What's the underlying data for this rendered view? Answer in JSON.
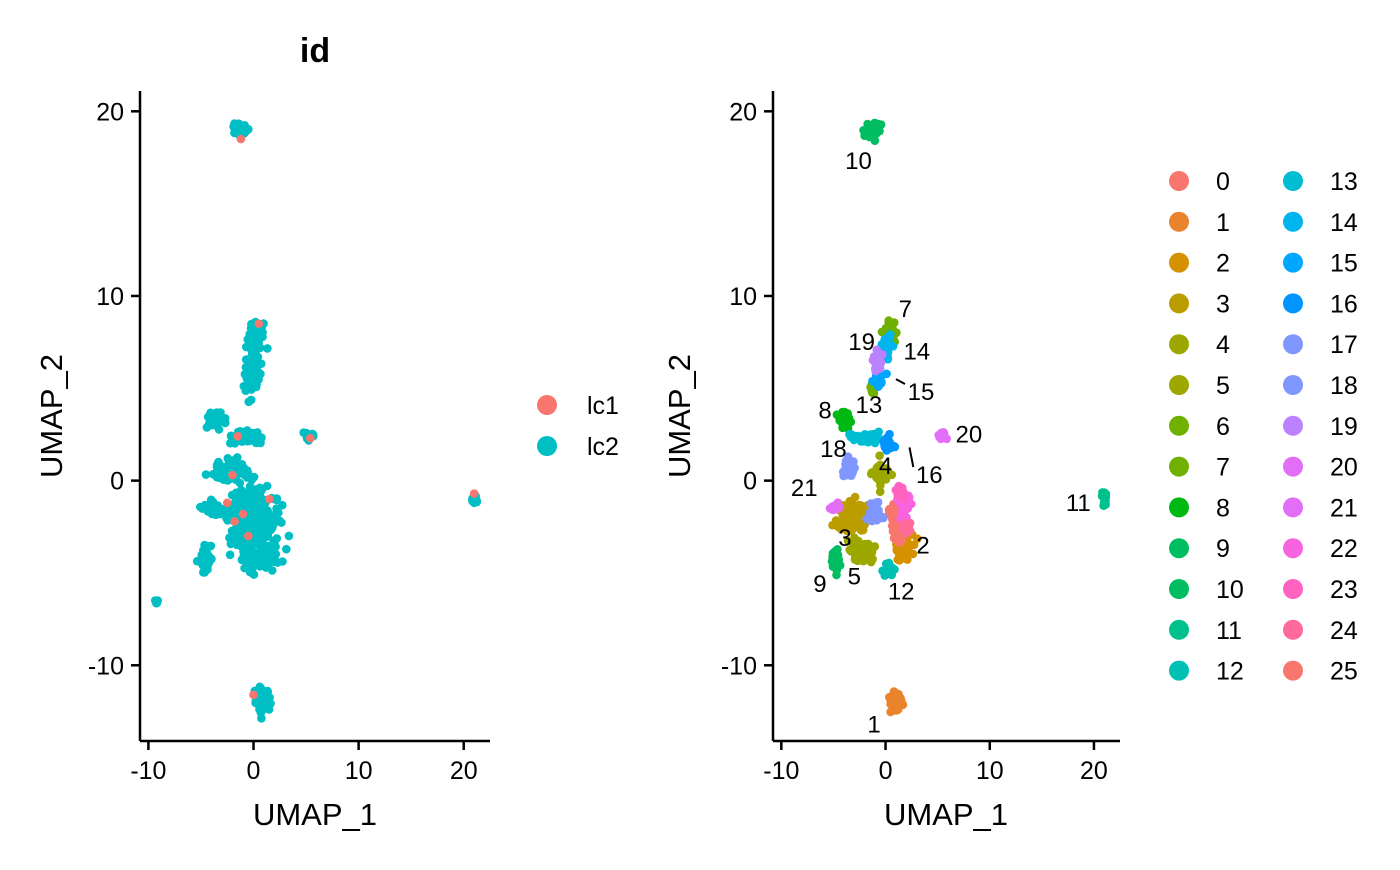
{
  "chart_data": [
    {
      "type": "scatter",
      "title": "id",
      "xlabel": "UMAP_1",
      "ylabel": "UMAP_2",
      "xlim": [
        -10.8,
        22.5
      ],
      "ylim": [
        -14.1,
        21.1
      ],
      "x_ticks": [
        -10,
        0,
        10,
        20
      ],
      "y_ticks": [
        -10,
        0,
        10,
        20
      ],
      "tick_labels_x": [
        "-10",
        "0",
        "10",
        "20"
      ],
      "tick_labels_y": [
        "-10",
        "0",
        "10",
        "20"
      ],
      "grid": false,
      "legend_position": "right",
      "series": [
        {
          "name": "lc1",
          "color": "#F8766D",
          "points": [
            [
              -1.5,
              2.4
            ],
            [
              -2.0,
              0.3
            ],
            [
              -2.5,
              -1.2
            ],
            [
              -1.0,
              -1.8
            ],
            [
              0.5,
              8.5
            ],
            [
              -1.2,
              18.5
            ],
            [
              0.0,
              -11.6
            ],
            [
              -1.8,
              -2.2
            ],
            [
              1.5,
              -1.0
            ],
            [
              21.0,
              -0.7
            ],
            [
              5.4,
              2.3
            ],
            [
              -0.5,
              -3.0
            ]
          ]
        },
        {
          "name": "lc2",
          "color": "#00BFC4",
          "clusters": [
            {
              "center": [
                -1.3,
                19.0
              ],
              "spread": [
                0.5,
                0.3
              ],
              "n": 45
            },
            {
              "center": [
                0.2,
                7.8
              ],
              "spread": [
                0.6,
                0.7
              ],
              "n": 60
            },
            {
              "center": [
                -0.2,
                5.8
              ],
              "spread": [
                0.6,
                0.9
              ],
              "n": 70
            },
            {
              "center": [
                -3.8,
                3.3
              ],
              "spread": [
                0.6,
                0.4
              ],
              "n": 45
            },
            {
              "center": [
                -1.0,
                2.3
              ],
              "spread": [
                1.2,
                0.3
              ],
              "n": 45
            },
            {
              "center": [
                -2.0,
                0.5
              ],
              "spread": [
                1.4,
                0.5
              ],
              "n": 70
            },
            {
              "center": [
                0.0,
                -2.0
              ],
              "spread": [
                1.8,
                1.2
              ],
              "n": 420
            },
            {
              "center": [
                -3.5,
                -1.5
              ],
              "spread": [
                1.2,
                0.3
              ],
              "n": 30
            },
            {
              "center": [
                -4.5,
                -4.2
              ],
              "spread": [
                0.5,
                0.6
              ],
              "n": 50
            },
            {
              "center": [
                0.5,
                -4.2
              ],
              "spread": [
                1.6,
                0.6
              ],
              "n": 90
            },
            {
              "center": [
                5.4,
                2.4
              ],
              "spread": [
                0.4,
                0.2
              ],
              "n": 18
            },
            {
              "center": [
                21.0,
                -1.0
              ],
              "spread": [
                0.2,
                0.3
              ],
              "n": 18
            },
            {
              "center": [
                -9.2,
                -6.6
              ],
              "spread": [
                0.2,
                0.15
              ],
              "n": 6
            },
            {
              "center": [
                0.8,
                -11.9
              ],
              "spread": [
                0.5,
                0.5
              ],
              "n": 90
            }
          ]
        }
      ]
    },
    {
      "type": "scatter",
      "title": "",
      "xlabel": "UMAP_1",
      "ylabel": "UMAP_2",
      "xlim": [
        -10.8,
        22.5
      ],
      "ylim": [
        -14.1,
        21.1
      ],
      "x_ticks": [
        -10,
        0,
        10,
        20
      ],
      "y_ticks": [
        -10,
        0,
        10,
        20
      ],
      "tick_labels_x": [
        "-10",
        "0",
        "10",
        "20"
      ],
      "tick_labels_y": [
        "-10",
        "0",
        "10",
        "20"
      ],
      "grid": false,
      "legend_position": "right",
      "legend_columns": 2,
      "series": [
        {
          "name": "0",
          "color": "#F8766D",
          "center": [
            1.0,
            -2.0
          ],
          "spread": [
            0.7,
            0.6
          ],
          "n": 70
        },
        {
          "name": "1",
          "color": "#E9842C",
          "center": [
            1.0,
            -12.0
          ],
          "spread": [
            0.45,
            0.5
          ],
          "n": 90
        },
        {
          "name": "2",
          "color": "#D69100",
          "center": [
            1.8,
            -3.6
          ],
          "spread": [
            0.6,
            0.7
          ],
          "n": 60
        },
        {
          "name": "3",
          "color": "#BC9D00",
          "center": [
            -3.2,
            -2.0
          ],
          "spread": [
            1.2,
            0.8
          ],
          "n": 140
        },
        {
          "name": "4",
          "color": "#9CA700",
          "center": [
            -0.5,
            0.3
          ],
          "spread": [
            0.6,
            0.6
          ],
          "n": 50
        },
        {
          "name": "5",
          "color": "#9CA700",
          "center": [
            -2.2,
            -3.8
          ],
          "spread": [
            1.0,
            0.5
          ],
          "n": 80
        },
        {
          "name": "6",
          "color": "#6FB000",
          "center": [
            -1.2,
            5.0
          ],
          "spread": [
            0.3,
            0.3
          ],
          "n": 12
        },
        {
          "name": "7",
          "color": "#6FB000",
          "center": [
            0.4,
            8.0
          ],
          "spread": [
            0.5,
            0.45
          ],
          "n": 50
        },
        {
          "name": "8",
          "color": "#00B813",
          "center": [
            -4.0,
            3.3
          ],
          "spread": [
            0.5,
            0.4
          ],
          "n": 45
        },
        {
          "name": "9",
          "color": "#00BD61",
          "center": [
            -4.8,
            -4.3
          ],
          "spread": [
            0.4,
            0.5
          ],
          "n": 40
        },
        {
          "name": "10",
          "color": "#00BD61",
          "center": [
            -1.3,
            19.0
          ],
          "spread": [
            0.5,
            0.3
          ],
          "n": 45
        },
        {
          "name": "11",
          "color": "#00C08E",
          "center": [
            21.0,
            -1.0
          ],
          "spread": [
            0.2,
            0.3
          ],
          "n": 18
        },
        {
          "name": "12",
          "color": "#00C0B4",
          "center": [
            0.3,
            -4.8
          ],
          "spread": [
            0.5,
            0.4
          ],
          "n": 25
        },
        {
          "name": "13",
          "color": "#00BDD4",
          "center": [
            -1.8,
            2.3
          ],
          "spread": [
            1.2,
            0.25
          ],
          "n": 40
        },
        {
          "name": "14",
          "color": "#00B5EE",
          "center": [
            0.0,
            7.2
          ],
          "spread": [
            0.5,
            0.5
          ],
          "n": 40
        },
        {
          "name": "15",
          "color": "#00A7FF",
          "center": [
            -0.8,
            5.5
          ],
          "spread": [
            0.4,
            0.4
          ],
          "n": 30
        },
        {
          "name": "16",
          "color": "#0094FF",
          "center": [
            0.2,
            2.0
          ],
          "spread": [
            0.5,
            0.3
          ],
          "n": 25
        },
        {
          "name": "17",
          "color": "#7F96FF",
          "center": [
            -1.0,
            -1.8
          ],
          "spread": [
            0.6,
            0.5
          ],
          "n": 30
        },
        {
          "name": "18",
          "color": "#7F96FF",
          "center": [
            -3.5,
            0.6
          ],
          "spread": [
            0.5,
            0.4
          ],
          "n": 30
        },
        {
          "name": "19",
          "color": "#BC81FF",
          "center": [
            -0.8,
            6.5
          ],
          "spread": [
            0.35,
            0.4
          ],
          "n": 25
        },
        {
          "name": "20",
          "color": "#E26EF7",
          "center": [
            5.4,
            2.4
          ],
          "spread": [
            0.35,
            0.2
          ],
          "n": 15
        },
        {
          "name": "21",
          "color": "#E26EF7",
          "center": [
            -4.8,
            -1.5
          ],
          "spread": [
            0.4,
            0.2
          ],
          "n": 12
        },
        {
          "name": "22",
          "color": "#F863DF",
          "center": [
            1.8,
            -1.2
          ],
          "spread": [
            0.5,
            0.6
          ],
          "n": 35
        },
        {
          "name": "23",
          "color": "#FF62BF",
          "center": [
            1.5,
            -0.6
          ],
          "spread": [
            0.4,
            0.3
          ],
          "n": 20
        },
        {
          "name": "24",
          "color": "#FF6A9A",
          "center": [
            2.0,
            -2.5
          ],
          "spread": [
            0.4,
            0.3
          ],
          "n": 15
        },
        {
          "name": "25",
          "color": "#F8766D",
          "center": [
            1.2,
            -3.0
          ],
          "spread": [
            0.3,
            0.3
          ],
          "n": 12
        }
      ],
      "annotations": [
        {
          "text": "10",
          "at": [
            -2.6,
            17.3
          ]
        },
        {
          "text": "7",
          "at": [
            1.9,
            9.3
          ]
        },
        {
          "text": "19",
          "at": [
            -2.3,
            7.5
          ]
        },
        {
          "text": "14",
          "at": [
            3.0,
            7.0
          ]
        },
        {
          "text": "15",
          "at": [
            3.4,
            4.8
          ],
          "leader_to": [
            1.0,
            5.5
          ]
        },
        {
          "text": "8",
          "at": [
            -5.8,
            3.8
          ]
        },
        {
          "text": "13",
          "at": [
            -1.6,
            4.1
          ]
        },
        {
          "text": "20",
          "at": [
            8.0,
            2.5
          ]
        },
        {
          "text": "18",
          "at": [
            -5.0,
            1.7
          ]
        },
        {
          "text": "16",
          "at": [
            4.2,
            0.3
          ],
          "leader_to": [
            2.3,
            1.8
          ]
        },
        {
          "text": "4",
          "at": [
            0.0,
            0.8
          ]
        },
        {
          "text": "21",
          "at": [
            -7.8,
            -0.4
          ]
        },
        {
          "text": "11",
          "at": [
            18.5,
            -1.2
          ]
        },
        {
          "text": "3",
          "at": [
            -3.9,
            -3.1
          ]
        },
        {
          "text": "2",
          "at": [
            3.6,
            -3.5
          ]
        },
        {
          "text": "9",
          "at": [
            -6.3,
            -5.6
          ]
        },
        {
          "text": "5",
          "at": [
            -3.0,
            -5.2
          ]
        },
        {
          "text": "12",
          "at": [
            1.5,
            -6.0
          ]
        },
        {
          "text": "1",
          "at": [
            -1.1,
            -13.2
          ]
        }
      ]
    }
  ]
}
